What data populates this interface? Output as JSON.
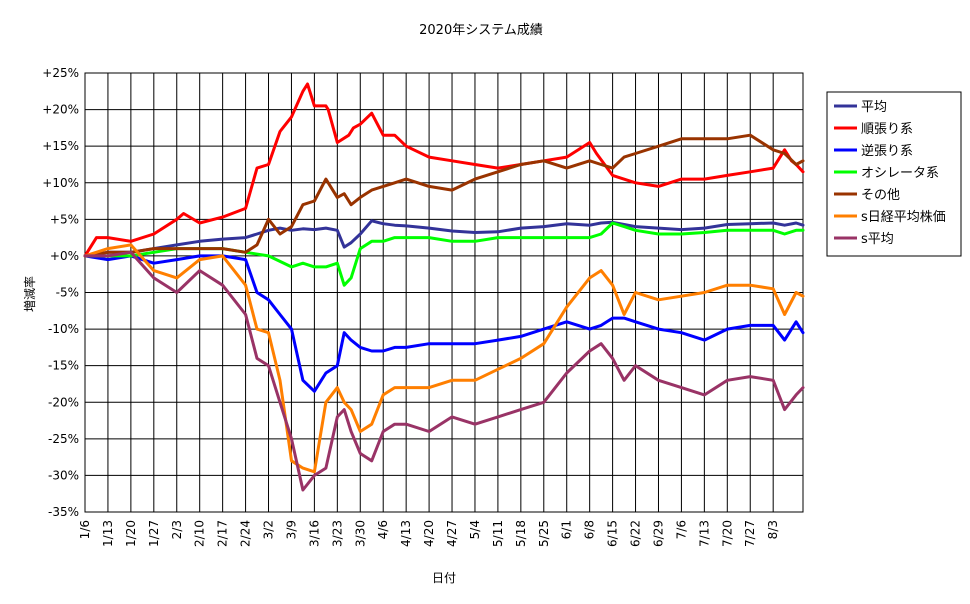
{
  "chart_data": {
    "type": "line",
    "title": "2020年システム成績",
    "xlabel": "日付",
    "ylabel": "増減率",
    "ylim": [
      -35,
      25
    ],
    "yticks": [
      25,
      20,
      15,
      10,
      5,
      0,
      -5,
      -10,
      -15,
      -20,
      -25,
      -30,
      -35
    ],
    "ytick_labels": [
      "+25%",
      "+20%",
      "+15%",
      "+10%",
      "+5%",
      "+0%",
      "-5%",
      "-10%",
      "-15%",
      "-20%",
      "-25%",
      "-30%",
      "-35%"
    ],
    "x_labels": [
      "1/6",
      "1/13",
      "1/20",
      "1/27",
      "2/3",
      "2/10",
      "2/17",
      "2/24",
      "3/2",
      "3/9",
      "3/16",
      "3/23",
      "3/30",
      "4/6",
      "4/13",
      "4/20",
      "4/27",
      "5/4",
      "5/11",
      "5/18",
      "5/25",
      "6/1",
      "6/8",
      "6/15",
      "6/22",
      "6/29",
      "7/6",
      "7/13",
      "7/20",
      "7/27",
      "8/3"
    ],
    "x_extent": [
      0,
      31.3
    ],
    "grid": true,
    "legend_position": "right",
    "series": [
      {
        "name": "平均",
        "color": "#333399",
        "x": [
          0,
          1,
          2,
          3,
          4,
          5,
          6,
          7,
          7.5,
          8,
          8.5,
          9,
          9.5,
          10,
          10.5,
          11,
          11.3,
          11.6,
          12,
          12.5,
          13,
          13.5,
          14,
          15,
          16,
          17,
          18,
          19,
          20,
          21,
          22,
          22.5,
          23,
          23.5,
          24,
          25,
          26,
          27,
          28,
          29,
          30,
          30.5,
          31,
          31.3
        ],
        "y": [
          0,
          0.5,
          0.5,
          1.0,
          1.5,
          2.0,
          2.3,
          2.5,
          3.0,
          3.5,
          3.8,
          3.5,
          3.7,
          3.6,
          3.8,
          3.5,
          1.2,
          1.8,
          3.0,
          4.8,
          4.4,
          4.2,
          4.1,
          3.8,
          3.4,
          3.2,
          3.3,
          3.8,
          4.0,
          4.4,
          4.2,
          4.5,
          4.6,
          4.3,
          4.0,
          3.8,
          3.6,
          3.8,
          4.3,
          4.4,
          4.5,
          4.2,
          4.5,
          4.2
        ]
      },
      {
        "name": "順張り系",
        "color": "#ff0000",
        "x": [
          0,
          0.5,
          1,
          2,
          3,
          4,
          4.3,
          5,
          6,
          7,
          7.5,
          8,
          8.5,
          9,
          9.5,
          9.7,
          10,
          10.5,
          10.6,
          11,
          11.5,
          11.7,
          12,
          12.5,
          13,
          13.5,
          14,
          15,
          16,
          17,
          18,
          19,
          20,
          21,
          22,
          22.3,
          23,
          24,
          25,
          26,
          27,
          28,
          29,
          30,
          30.5,
          30.8,
          31,
          31.3
        ],
        "y": [
          0,
          2.5,
          2.5,
          2.0,
          3.0,
          5.0,
          5.8,
          4.5,
          5.3,
          6.5,
          12.0,
          12.5,
          17.0,
          19.0,
          22.5,
          23.5,
          20.5,
          20.5,
          20.0,
          15.5,
          16.5,
          17.5,
          18.0,
          19.5,
          16.5,
          16.5,
          15.0,
          13.5,
          13.0,
          12.5,
          12.0,
          12.5,
          13.0,
          13.5,
          15.5,
          14.0,
          11.0,
          10.0,
          9.5,
          10.5,
          10.5,
          11.0,
          11.5,
          12.0,
          14.5,
          13.0,
          12.5,
          11.5
        ]
      },
      {
        "name": "逆張り系",
        "color": "#0000ff",
        "x": [
          0,
          1,
          2,
          3,
          4,
          5,
          6,
          7,
          7.5,
          8,
          8.5,
          9,
          9.5,
          10,
          10.5,
          11,
          11.3,
          11.6,
          12,
          12.5,
          13,
          13.5,
          14,
          15,
          16,
          17,
          18,
          19,
          20,
          21,
          22,
          22.5,
          23,
          23.5,
          24,
          25,
          26,
          27,
          28,
          29,
          30,
          30.5,
          31,
          31.3
        ],
        "y": [
          0,
          -0.5,
          0,
          -1.0,
          -0.5,
          0,
          0,
          -0.5,
          -5.0,
          -6.0,
          -8.0,
          -10.0,
          -17.0,
          -18.5,
          -16.0,
          -15.0,
          -10.5,
          -11.5,
          -12.5,
          -13.0,
          -13.0,
          -12.5,
          -12.5,
          -12.0,
          -12.0,
          -12.0,
          -11.5,
          -11.0,
          -10.0,
          -9.0,
          -10.0,
          -9.5,
          -8.5,
          -8.5,
          -9.0,
          -10.0,
          -10.5,
          -11.5,
          -10.0,
          -9.5,
          -9.5,
          -11.5,
          -9.0,
          -10.5
        ]
      },
      {
        "name": "オシレータ系",
        "color": "#00ff00",
        "x": [
          0,
          1,
          2,
          3,
          4,
          5,
          6,
          7,
          8,
          9,
          9.5,
          10,
          10.5,
          11,
          11.3,
          11.6,
          12,
          12.5,
          13,
          13.5,
          14,
          15,
          16,
          17,
          18,
          19,
          20,
          21,
          22,
          22.5,
          23,
          23.5,
          24,
          25,
          26,
          27,
          28,
          29,
          30,
          30.5,
          31,
          31.3
        ],
        "y": [
          0,
          0,
          0,
          0.5,
          1.0,
          1.0,
          1.0,
          0.5,
          0,
          -1.5,
          -1.0,
          -1.5,
          -1.5,
          -1.0,
          -4.0,
          -3.0,
          1.0,
          2.0,
          2.0,
          2.5,
          2.5,
          2.5,
          2.0,
          2.0,
          2.5,
          2.5,
          2.5,
          2.5,
          2.5,
          3.0,
          4.5,
          4.0,
          3.5,
          3.0,
          3.0,
          3.2,
          3.5,
          3.5,
          3.5,
          3.0,
          3.5,
          3.5
        ]
      },
      {
        "name": "その他",
        "color": "#993300",
        "x": [
          0,
          1,
          2,
          3,
          4,
          5,
          6,
          7,
          7.5,
          8,
          8.5,
          9,
          9.5,
          10,
          10.5,
          11,
          11.3,
          11.6,
          12,
          12.5,
          13,
          13.5,
          14,
          15,
          16,
          17,
          18,
          19,
          20,
          21,
          22,
          22.5,
          23,
          23.5,
          24,
          25,
          26,
          27,
          28,
          29,
          30,
          30.5,
          31,
          31.3
        ],
        "y": [
          0,
          0.5,
          0.5,
          1.0,
          1.0,
          1.0,
          1.0,
          0.5,
          1.5,
          5.0,
          3.0,
          4.0,
          7.0,
          7.5,
          10.5,
          8.0,
          8.5,
          7.0,
          8.0,
          9.0,
          9.5,
          10.0,
          10.5,
          9.5,
          9.0,
          10.5,
          11.5,
          12.5,
          13.0,
          12.0,
          13.0,
          12.5,
          12.0,
          13.5,
          14.0,
          15.0,
          16.0,
          16.0,
          16.0,
          16.5,
          14.5,
          14.0,
          12.5,
          13.0
        ]
      },
      {
        "name": "s日経平均株価",
        "color": "#ff7f00",
        "x": [
          0,
          1,
          2,
          3,
          4,
          5,
          6,
          7,
          7.5,
          8,
          8.5,
          9,
          9.5,
          10,
          10.5,
          11,
          11.3,
          11.6,
          12,
          12.5,
          13,
          13.5,
          14,
          15,
          16,
          17,
          18,
          19,
          20,
          21,
          22,
          22.5,
          23,
          23.5,
          24,
          25,
          26,
          27,
          28,
          29,
          30,
          30.5,
          31,
          31.3
        ],
        "y": [
          0,
          1.0,
          1.5,
          -2.0,
          -3.0,
          -0.5,
          0,
          -4.0,
          -10.0,
          -10.5,
          -17.0,
          -28.0,
          -29.0,
          -29.5,
          -20.0,
          -18.0,
          -20.0,
          -21.0,
          -24.0,
          -23.0,
          -19.0,
          -18.0,
          -18.0,
          -18.0,
          -17.0,
          -17.0,
          -15.5,
          -14.0,
          -12.0,
          -7.0,
          -3.0,
          -2.0,
          -4.0,
          -8.0,
          -5.0,
          -6.0,
          -5.5,
          -5.0,
          -4.0,
          -4.0,
          -4.5,
          -8.0,
          -5.0,
          -5.5
        ]
      },
      {
        "name": "s平均",
        "color": "#993366",
        "x": [
          0,
          1,
          2,
          3,
          4,
          5,
          6,
          7,
          7.5,
          8,
          8.5,
          9,
          9.5,
          10,
          10.5,
          11,
          11.3,
          11.6,
          12,
          12.5,
          13,
          13.5,
          14,
          15,
          16,
          17,
          18,
          19,
          20,
          21,
          22,
          22.5,
          23,
          23.5,
          24,
          25,
          26,
          27,
          28,
          29,
          30,
          30.5,
          31,
          31.3
        ],
        "y": [
          0,
          0,
          0.5,
          -3.0,
          -5.0,
          -2.0,
          -4.0,
          -8.0,
          -14.0,
          -15.0,
          -20.0,
          -25.0,
          -32.0,
          -30.0,
          -29.0,
          -22.0,
          -21.0,
          -24.0,
          -27.0,
          -28.0,
          -24.0,
          -23.0,
          -23.0,
          -24.0,
          -22.0,
          -23.0,
          -22.0,
          -21.0,
          -20.0,
          -16.0,
          -13.0,
          -12.0,
          -14.0,
          -17.0,
          -15.0,
          -17.0,
          -18.0,
          -19.0,
          -17.0,
          -16.5,
          -17.0,
          -21.0,
          -19.0,
          -18.0
        ]
      }
    ]
  }
}
